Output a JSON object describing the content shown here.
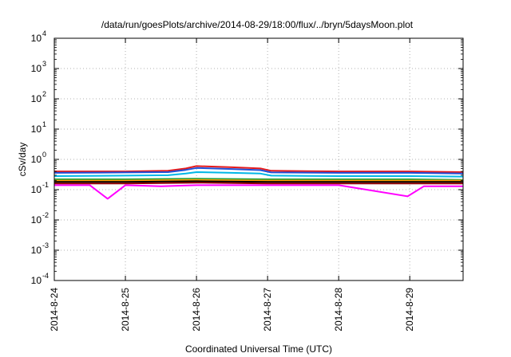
{
  "chart_data": {
    "type": "line",
    "title": "/data/run/goesPlots/archive/2014-08-29/18:00/flux/../bryn/5daysMoon.plot",
    "xlabel": "Coordinated Universal Time (UTC)",
    "ylabel": "cSv/day",
    "x_tick_labels": [
      "2014-8-24",
      "2014-8-25",
      "2014-8-26",
      "2014-8-27",
      "2014-8-28",
      "2014-8-29"
    ],
    "x_tick_values": [
      0,
      1,
      2,
      3,
      4,
      5
    ],
    "xlim": [
      0,
      5.75
    ],
    "x_unit": "days since 2014-8-24 00:00",
    "yscale": "log",
    "ylim": [
      0.0001,
      10000
    ],
    "y_ticks": [
      {
        "base": "10",
        "exp": "-4",
        "value": 0.0001
      },
      {
        "base": "10",
        "exp": "-3",
        "value": 0.001
      },
      {
        "base": "10",
        "exp": "-2",
        "value": 0.01
      },
      {
        "base": "10",
        "exp": "-1",
        "value": 0.1
      },
      {
        "base": "10",
        "exp": "0",
        "value": 1
      },
      {
        "base": "10",
        "exp": "1",
        "value": 10
      },
      {
        "base": "10",
        "exp": "2",
        "value": 100
      },
      {
        "base": "10",
        "exp": "3",
        "value": 1000
      },
      {
        "base": "10",
        "exp": "4",
        "value": 10000
      }
    ],
    "grid": true,
    "legend": "none",
    "series": [
      {
        "color": "#e41a1c",
        "x": [
          0,
          1,
          1.6,
          1.85,
          2.0,
          2.5,
          2.9,
          3.05,
          4,
          5,
          5.75
        ],
        "y": [
          0.4,
          0.4,
          0.42,
          0.5,
          0.6,
          0.55,
          0.5,
          0.42,
          0.4,
          0.4,
          0.38
        ]
      },
      {
        "color": "#1f4fd8",
        "x": [
          0,
          1,
          1.6,
          1.85,
          2.0,
          2.5,
          2.9,
          3.05,
          4,
          5,
          5.75
        ],
        "y": [
          0.36,
          0.37,
          0.38,
          0.45,
          0.52,
          0.48,
          0.44,
          0.37,
          0.36,
          0.36,
          0.34
        ]
      },
      {
        "color": "#00b7e6",
        "x": [
          0,
          1,
          1.6,
          1.85,
          2.0,
          2.5,
          2.9,
          3.05,
          4,
          5,
          5.75
        ],
        "y": [
          0.28,
          0.29,
          0.3,
          0.34,
          0.38,
          0.36,
          0.34,
          0.29,
          0.28,
          0.28,
          0.27
        ]
      },
      {
        "color": "#1a9e3a",
        "x": [
          0,
          1,
          2,
          3,
          4,
          5,
          5.75
        ],
        "y": [
          0.22,
          0.22,
          0.23,
          0.22,
          0.22,
          0.22,
          0.21
        ]
      },
      {
        "color": "#ff9a00",
        "x": [
          0,
          1,
          2,
          3,
          4,
          5,
          5.75
        ],
        "y": [
          0.2,
          0.2,
          0.21,
          0.2,
          0.2,
          0.2,
          0.2
        ]
      },
      {
        "color": "#000000",
        "x": [
          0,
          1,
          2,
          3,
          4,
          5,
          5.75
        ],
        "y": [
          0.18,
          0.18,
          0.19,
          0.18,
          0.18,
          0.18,
          0.18
        ]
      },
      {
        "color": "#8b0000",
        "x": [
          0,
          1,
          2,
          3,
          4,
          5,
          5.75
        ],
        "y": [
          0.16,
          0.16,
          0.17,
          0.16,
          0.16,
          0.16,
          0.16
        ]
      },
      {
        "color": "#ff00ff",
        "x": [
          0,
          0.5,
          0.75,
          1,
          1.5,
          2,
          3,
          4,
          4.97,
          5.2,
          5.75
        ],
        "y": [
          0.14,
          0.14,
          0.05,
          0.14,
          0.13,
          0.14,
          0.14,
          0.14,
          0.06,
          0.13,
          0.13
        ]
      }
    ]
  }
}
